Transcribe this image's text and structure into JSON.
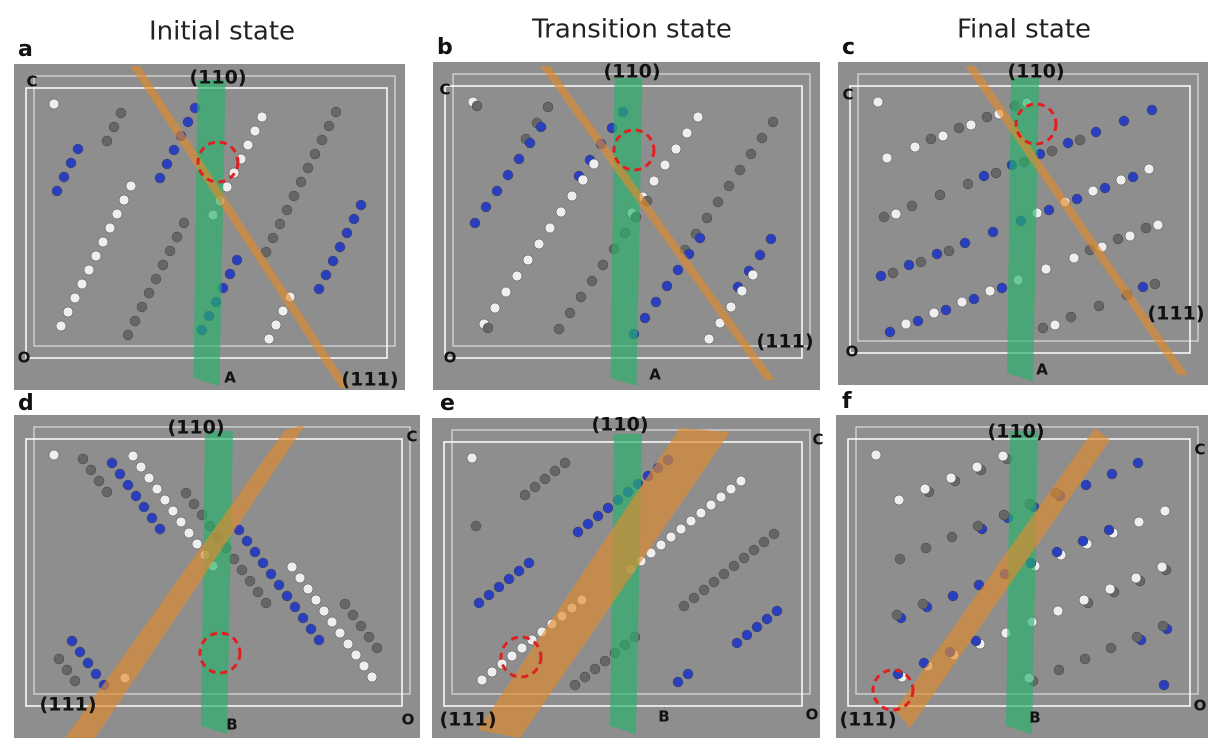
{
  "column_titles": [
    "Initial state",
    "Transition state",
    "Final state"
  ],
  "panels": [
    {
      "letter": "a",
      "plane_110": "(110)",
      "plane_111": "(111)",
      "axis_c": "C",
      "axis_o": "O",
      "axis_ab": "A"
    },
    {
      "letter": "b",
      "plane_110": "(110)",
      "plane_111": "(111)",
      "axis_c": "C",
      "axis_o": "O",
      "axis_ab": "A"
    },
    {
      "letter": "c",
      "plane_110": "(110)",
      "plane_111": "(111)",
      "axis_c": "C",
      "axis_o": "O",
      "axis_ab": "A"
    },
    {
      "letter": "d",
      "plane_110": "(110)",
      "plane_111": "(111)",
      "axis_c": "C",
      "axis_o": "O",
      "axis_ab": "B"
    },
    {
      "letter": "e",
      "plane_110": "(110)",
      "plane_111": "(111)",
      "axis_c": "C",
      "axis_o": "O",
      "axis_ab": "B"
    },
    {
      "letter": "f",
      "plane_110": "(110)",
      "plane_111": "(111)",
      "axis_c": "C",
      "axis_o": "O",
      "axis_ab": "B"
    }
  ]
}
